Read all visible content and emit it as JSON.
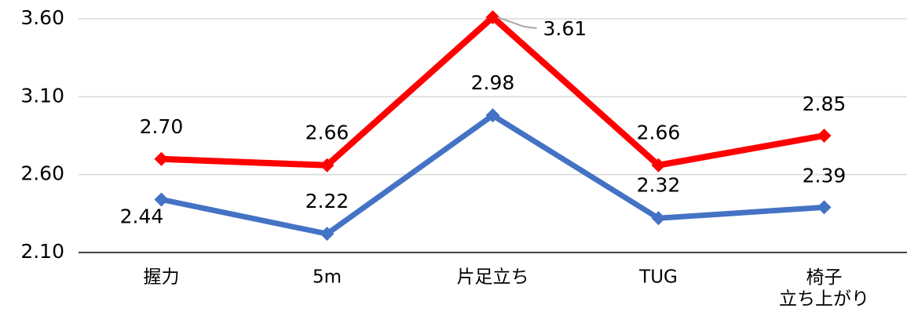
{
  "chart_data": {
    "type": "line",
    "categories": [
      "握力",
      "5m",
      "片足立ち",
      "TUG",
      "椅子\n立ち上がり"
    ],
    "series": [
      {
        "color": "#ff0000",
        "values": [
          2.7,
          2.66,
          3.61,
          2.66,
          2.85
        ],
        "value_labels": [
          "2.70",
          "2.66",
          "3.61",
          "2.66",
          "2.85"
        ]
      },
      {
        "color": "#4472c4",
        "values": [
          2.44,
          2.22,
          2.98,
          2.32,
          2.39
        ],
        "value_labels": [
          "2.44",
          "2.22",
          "2.98",
          "2.32",
          "2.39"
        ]
      }
    ],
    "ylim": [
      2.1,
      3.6
    ],
    "yticks": [
      {
        "value": 2.1,
        "label": "2.10"
      },
      {
        "value": 2.6,
        "label": "2.60"
      },
      {
        "value": 3.1,
        "label": "3.10"
      },
      {
        "value": 3.6,
        "label": "3.60"
      }
    ],
    "grid": true
  }
}
